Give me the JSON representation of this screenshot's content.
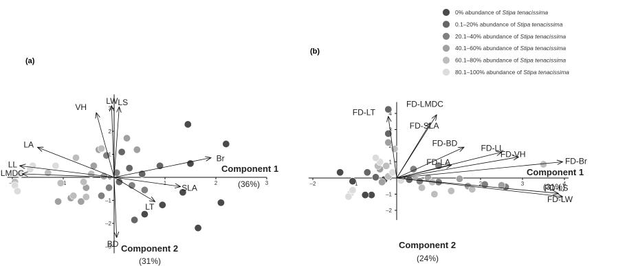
{
  "chart_data": {
    "type": "scatter",
    "legend": {
      "placement": "top-right",
      "items": [
        {
          "pre": "0% abundance of ",
          "em": "Stipa tenacissima",
          "color": "#4a4a4a"
        },
        {
          "pre": "0.1–20% abundance of ",
          "em": "Stipa tenacissima",
          "color": "#666666"
        },
        {
          "pre": "20.1–40% abundance of ",
          "em": "Stipa tenacissima",
          "color": "#808080"
        },
        {
          "pre": "40.1–60% abundance of ",
          "em": "Stipa tenacissima",
          "color": "#a0a0a0"
        },
        {
          "pre": "60.1–80% abundance of ",
          "em": "Stipa tenacissima",
          "color": "#bdbdbd"
        },
        {
          "pre": "80.1–100% abundance of ",
          "em": "Stipa tenacissima",
          "color": "#dcdcdc"
        }
      ]
    },
    "panels": [
      {
        "label": "(a)",
        "type": "biplot",
        "xlim": [
          -2.1,
          3
        ],
        "ylim": [
          -3.3,
          3.6
        ],
        "xticks": [
          -2,
          -1,
          0,
          1,
          2,
          3
        ],
        "xtick_labels": [
          "–2",
          "–1",
          "0",
          "1",
          "2",
          "3"
        ],
        "yticks": [
          -3,
          -2,
          -1,
          0,
          1,
          2,
          3
        ],
        "ytick_labels": [
          "–3",
          "–2",
          "–1",
          "0",
          "1",
          "2",
          "3"
        ],
        "xlabel": "Component 1",
        "xlabel_pct": "(36%)",
        "ylabel": "Component 2",
        "ylabel_pct": "(31%)",
        "vectors": [
          {
            "name": "VH",
            "x": -0.35,
            "y": 2.8
          },
          {
            "name": "LW",
            "x": -0.05,
            "y": 3.1
          },
          {
            "name": "LS",
            "x": 0.1,
            "y": 3.05
          },
          {
            "name": "LA",
            "x": -1.5,
            "y": 1.3
          },
          {
            "name": "LL",
            "x": -1.85,
            "y": 0.5
          },
          {
            "name": "LMDC",
            "x": -1.8,
            "y": 0.15
          },
          {
            "name": "Br",
            "x": 1.9,
            "y": 0.85
          },
          {
            "name": "SLA",
            "x": 1.3,
            "y": -0.4
          },
          {
            "name": "LT",
            "x": 0.8,
            "y": -1.05
          },
          {
            "name": "BD",
            "x": 0.05,
            "y": -2.6
          }
        ],
        "points": [
          {
            "x": 1.45,
            "y": 2.3,
            "g": 0
          },
          {
            "x": 2.2,
            "y": 1.45,
            "g": 0
          },
          {
            "x": 1.5,
            "y": 0.6,
            "g": 0
          },
          {
            "x": 2.1,
            "y": -1.1,
            "g": 0
          },
          {
            "x": 0.6,
            "y": -1.6,
            "g": 0
          },
          {
            "x": 1.65,
            "y": -2.2,
            "g": 0
          },
          {
            "x": 1.35,
            "y": -0.65,
            "g": 0
          },
          {
            "x": 0.95,
            "y": -1.2,
            "g": 0
          },
          {
            "x": 0.9,
            "y": 0.5,
            "g": 1
          },
          {
            "x": 0.55,
            "y": 0.15,
            "g": 1
          },
          {
            "x": 0.3,
            "y": 0.4,
            "g": 1
          },
          {
            "x": 0.15,
            "y": 1.1,
            "g": 1
          },
          {
            "x": 0.4,
            "y": -1.85,
            "g": 1
          },
          {
            "x": 0.1,
            "y": -0.2,
            "g": 1
          },
          {
            "x": -0.15,
            "y": 0.95,
            "g": 2
          },
          {
            "x": 0.35,
            "y": -0.35,
            "g": 2
          },
          {
            "x": 0.6,
            "y": -0.55,
            "g": 2
          },
          {
            "x": -0.25,
            "y": -0.8,
            "g": 2
          },
          {
            "x": 0.05,
            "y": 0.2,
            "g": 2
          },
          {
            "x": -0.1,
            "y": -0.45,
            "g": 2
          },
          {
            "x": 0.25,
            "y": 1.7,
            "g": 3
          },
          {
            "x": 0.45,
            "y": 1.2,
            "g": 3
          },
          {
            "x": -0.3,
            "y": 1.2,
            "g": 3
          },
          {
            "x": -0.55,
            "y": -0.45,
            "g": 3
          },
          {
            "x": -0.85,
            "y": -0.9,
            "g": 3
          },
          {
            "x": -0.65,
            "y": -1.05,
            "g": 3
          },
          {
            "x": -0.4,
            "y": 0.5,
            "g": 3
          },
          {
            "x": -0.2,
            "y": 0.05,
            "g": 3
          },
          {
            "x": -1.1,
            "y": -1.05,
            "g": 3
          },
          {
            "x": -0.25,
            "y": 1.25,
            "g": 4
          },
          {
            "x": -0.75,
            "y": 0.85,
            "g": 4
          },
          {
            "x": -0.45,
            "y": 0.15,
            "g": 4
          },
          {
            "x": -1.05,
            "y": -0.25,
            "g": 4
          },
          {
            "x": -0.6,
            "y": -0.2,
            "g": 4
          },
          {
            "x": -0.55,
            "y": -0.85,
            "g": 4
          },
          {
            "x": -0.8,
            "y": -0.8,
            "g": 4
          },
          {
            "x": -1.3,
            "y": 0.2,
            "g": 4
          },
          {
            "x": -1.95,
            "y": -0.2,
            "g": 4
          },
          {
            "x": -1.6,
            "y": 0.5,
            "g": 5
          },
          {
            "x": -1.85,
            "y": 0.15,
            "g": 5
          },
          {
            "x": -1.95,
            "y": -0.35,
            "g": 5
          },
          {
            "x": -1.9,
            "y": -0.6,
            "g": 5
          },
          {
            "x": -1.65,
            "y": 0.35,
            "g": 5
          },
          {
            "x": -1.15,
            "y": 0.5,
            "g": 5
          }
        ]
      },
      {
        "label": "(b)",
        "type": "biplot",
        "xlim": [
          -2.1,
          4.1
        ],
        "ylim": [
          -2.6,
          4.7
        ],
        "xticks": [
          -2,
          -1,
          0,
          1,
          2,
          3,
          4
        ],
        "xtick_labels": [
          "–2",
          "–1",
          "0",
          "1",
          "2",
          "3",
          "4"
        ],
        "yticks": [
          -2,
          -1,
          0,
          1,
          2,
          3,
          4
        ],
        "ytick_labels": [
          "–2",
          "–1",
          "0",
          "1",
          "2",
          "3",
          "4"
        ],
        "xlabel": "Component 1",
        "xlabel_pct": "(31%)",
        "ylabel": "Component 2",
        "ylabel_pct": "(24%)",
        "vectors": [
          {
            "name": "FD-LT",
            "x": -0.2,
            "y": 3.8
          },
          {
            "name": "FD-LMDC",
            "x": 0.95,
            "y": 3.9
          },
          {
            "name": "FD-SLA",
            "x": 0.8,
            "y": 3.4
          },
          {
            "name": "FD-BD",
            "x": 1.6,
            "y": 1.9
          },
          {
            "name": "FD-LL",
            "x": 2.5,
            "y": 1.6
          },
          {
            "name": "FD-VH",
            "x": 2.9,
            "y": 1.3
          },
          {
            "name": "FD-Br",
            "x": 3.95,
            "y": 1.0
          },
          {
            "name": "FD-LA",
            "x": 1.3,
            "y": 0.8
          },
          {
            "name": "FD-LS",
            "x": 3.85,
            "y": -0.95
          },
          {
            "name": "FD-LW",
            "x": 3.95,
            "y": -1.15
          }
        ],
        "points": [
          {
            "x": -1.35,
            "y": 0.35,
            "g": 0
          },
          {
            "x": -1.05,
            "y": -0.2,
            "g": 0
          },
          {
            "x": -0.6,
            "y": -1.05,
            "g": 0
          },
          {
            "x": -0.75,
            "y": -1.05,
            "g": 0
          },
          {
            "x": -0.3,
            "y": -0.1,
            "g": 0
          },
          {
            "x": -0.2,
            "y": 4.25,
            "g": 1
          },
          {
            "x": -0.2,
            "y": 2.75,
            "g": 1
          },
          {
            "x": -0.7,
            "y": 0.35,
            "g": 1
          },
          {
            "x": -0.5,
            "y": 0.05,
            "g": 1
          },
          {
            "x": 0.3,
            "y": -0.1,
            "g": 1
          },
          {
            "x": 1.0,
            "y": 0.75,
            "g": 2
          },
          {
            "x": 1.0,
            "y": -0.25,
            "g": 2
          },
          {
            "x": 0.55,
            "y": -0.2,
            "g": 2
          },
          {
            "x": 0.4,
            "y": 0.55,
            "g": 2
          },
          {
            "x": 2.6,
            "y": -0.55,
            "g": 2
          },
          {
            "x": 2.1,
            "y": -0.4,
            "g": 2
          },
          {
            "x": -0.2,
            "y": 2.2,
            "g": 3
          },
          {
            "x": -0.4,
            "y": 0.55,
            "g": 3
          },
          {
            "x": -0.35,
            "y": -0.25,
            "g": 3
          },
          {
            "x": 0.75,
            "y": 0.0,
            "g": 3
          },
          {
            "x": 1.5,
            "y": -0.05,
            "g": 3
          },
          {
            "x": 1.7,
            "y": -0.5,
            "g": 3
          },
          {
            "x": 2.5,
            "y": -0.45,
            "g": 3
          },
          {
            "x": -0.05,
            "y": 1.8,
            "g": 4
          },
          {
            "x": -0.25,
            "y": 0.75,
            "g": 4
          },
          {
            "x": -0.45,
            "y": 0.75,
            "g": 4
          },
          {
            "x": -0.2,
            "y": 0.1,
            "g": 4
          },
          {
            "x": 0.85,
            "y": -0.25,
            "g": 4
          },
          {
            "x": 3.5,
            "y": 0.85,
            "g": 4
          },
          {
            "x": 1.3,
            "y": -0.8,
            "g": 4
          },
          {
            "x": 0.6,
            "y": -0.6,
            "g": 4
          },
          {
            "x": 0.9,
            "y": -1.0,
            "g": 4
          },
          {
            "x": 1.8,
            "y": -0.7,
            "g": 4
          },
          {
            "x": -0.4,
            "y": 1.0,
            "g": 5
          },
          {
            "x": -0.5,
            "y": 1.25,
            "g": 5
          },
          {
            "x": -0.1,
            "y": 0.35,
            "g": 5
          },
          {
            "x": -1.1,
            "y": -0.95,
            "g": 5
          },
          {
            "x": -1.15,
            "y": -1.15,
            "g": 5
          },
          {
            "x": -1.05,
            "y": -0.75,
            "g": 5
          },
          {
            "x": 0.1,
            "y": -0.15,
            "g": 5
          }
        ]
      }
    ]
  }
}
